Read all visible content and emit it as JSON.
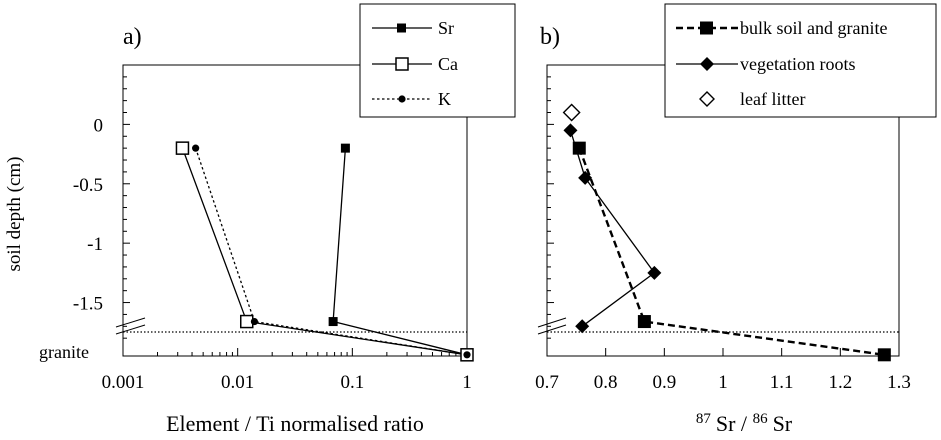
{
  "y_axis_label": "soil depth (cm)",
  "y_ticks": [
    "0",
    "-0.5",
    "-1",
    "-1.5"
  ],
  "granite_label": "granite",
  "chart_data": [
    {
      "panel_label": "a)",
      "type": "line",
      "x_scale": "log",
      "xlim": [
        0.001,
        1
      ],
      "ylim": [
        -1.95,
        0.5
      ],
      "x_ticks": [
        "0.001",
        "0.01",
        "0.1",
        "1"
      ],
      "xlabel": "Element / Ti normalised ratio",
      "ylabel": "soil depth (cm)",
      "legend_position": "top-right",
      "series": [
        {
          "name": "Sr",
          "style": "solid",
          "marker": "small-filled-square",
          "x": [
            0.087,
            0.068,
            1.0
          ],
          "y": [
            -0.2,
            -1.66,
            -1.94
          ]
        },
        {
          "name": "Ca",
          "style": "solid",
          "marker": "open-square",
          "x": [
            0.0033,
            0.012,
            1.0
          ],
          "y": [
            -0.2,
            -1.66,
            -1.94
          ]
        },
        {
          "name": "K",
          "style": "dotted",
          "marker": "small-filled-circle",
          "x": [
            0.0043,
            0.014,
            1.0
          ],
          "y": [
            -0.2,
            -1.66,
            -1.94
          ]
        }
      ],
      "reference_line": {
        "y": -1.75,
        "style": "dotted",
        "label": "granite"
      }
    },
    {
      "panel_label": "b)",
      "type": "line",
      "xlim": [
        0.7,
        1.3
      ],
      "ylim": [
        -1.95,
        0.5
      ],
      "x_ticks": [
        "0.7",
        "0.8",
        "0.9",
        "1",
        "1.1",
        "1.2",
        "1.3"
      ],
      "xlabel_parts": [
        "87",
        "Sr / ",
        "86",
        "Sr"
      ],
      "legend_position": "top",
      "series": [
        {
          "name": "bulk soil and granite",
          "style": "dashed",
          "marker": "filled-square",
          "x": [
            0.755,
            0.866,
            1.275
          ],
          "y": [
            -0.2,
            -1.66,
            -1.94
          ]
        },
        {
          "name": "vegetation roots",
          "style": "solid",
          "marker": "filled-diamond",
          "x": [
            0.74,
            0.765,
            0.883,
            0.76
          ],
          "y": [
            -0.05,
            -0.45,
            -1.25,
            -1.7
          ]
        },
        {
          "name": "leaf litter",
          "style": "none",
          "marker": "open-diamond",
          "x": [
            0.742
          ],
          "y": [
            0.1
          ]
        }
      ],
      "reference_line": {
        "y": -1.75,
        "style": "dotted"
      }
    }
  ]
}
